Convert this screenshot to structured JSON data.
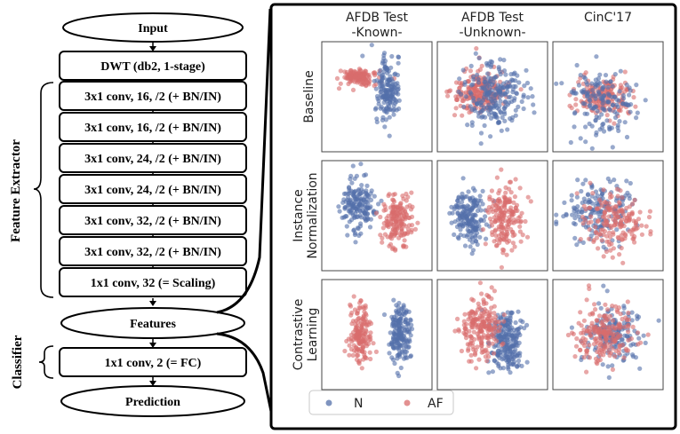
{
  "pipeline": {
    "input": "Input",
    "dwt": "DWT (db2, 1-stage)",
    "layers": [
      "3x1 conv, 16, /2 (+ BN/IN)",
      "3x1 conv, 16, /2 (+ BN/IN)",
      "3x1 conv, 24, /2 (+ BN/IN)",
      "3x1 conv, 24, /2 (+ BN/IN)",
      "3x1 conv, 32, /2 (+ BN/IN)",
      "3x1 conv, 32, /2 (+ BN/IN)",
      "1x1 conv, 32 (= Scaling)"
    ],
    "features": "Features",
    "fc": "1x1 conv, 2 (= FC)",
    "prediction": "Prediction"
  },
  "groups": {
    "feature_extractor": "Feature Extractor",
    "classifier": "Classifier"
  },
  "scatter": {
    "columns": [
      {
        "line1": "AFDB Test",
        "line2": "-Known-"
      },
      {
        "line1": "AFDB Test",
        "line2": "-Unknown-"
      },
      {
        "line1": "CinC'17",
        "line2": ""
      }
    ],
    "rows": [
      {
        "line1": "Baseline",
        "line2": ""
      },
      {
        "line1": "Instance",
        "line2": "Normalization"
      },
      {
        "line1": "Contrastive",
        "line2": "Learning"
      }
    ],
    "legend": [
      {
        "label": "N",
        "color": "#5470aa"
      },
      {
        "label": "AF",
        "color": "#d96c6c"
      }
    ]
  }
}
